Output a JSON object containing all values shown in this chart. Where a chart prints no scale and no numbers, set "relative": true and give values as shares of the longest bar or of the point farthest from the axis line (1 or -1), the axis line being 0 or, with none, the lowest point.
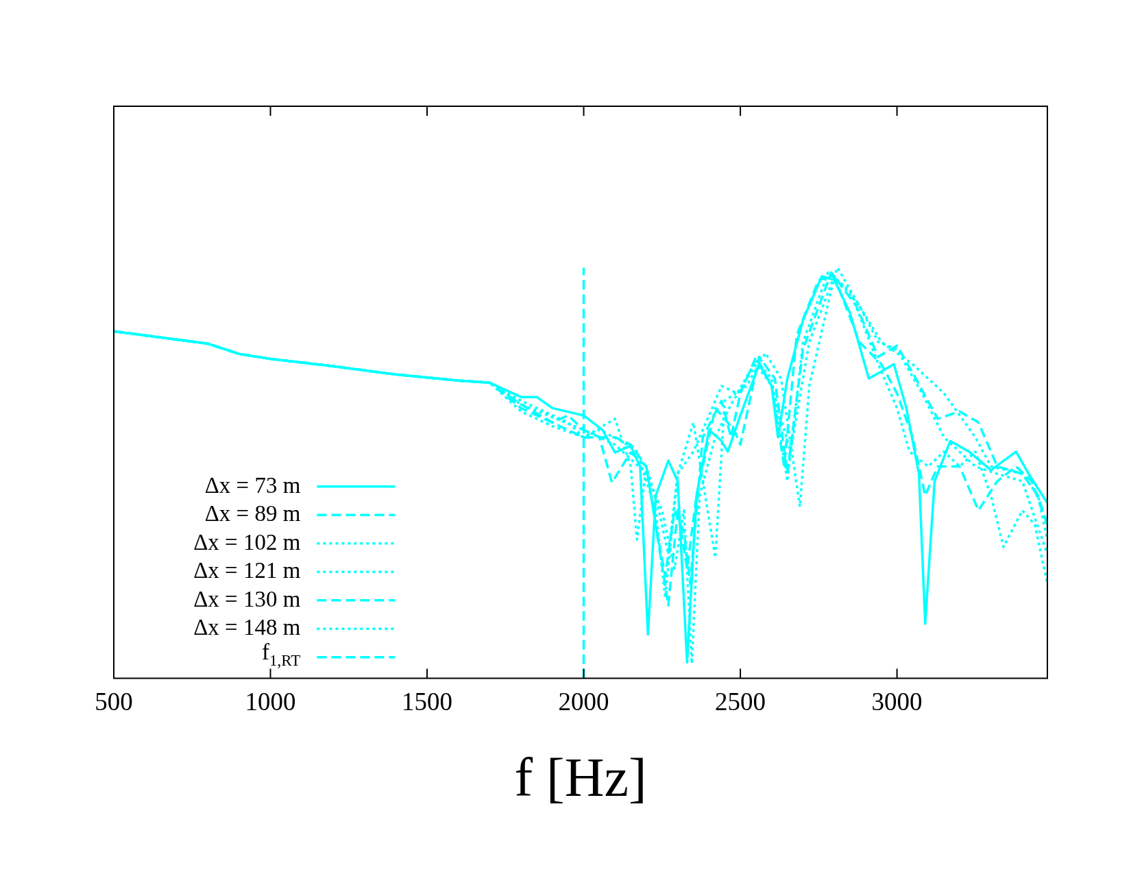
{
  "chart_data": {
    "type": "line",
    "xlabel": "f [Hz]",
    "relative": true,
    "xlim": [
      500,
      3480
    ],
    "xticks": [
      500,
      1000,
      1500,
      2000,
      2500,
      3000
    ],
    "grid": false,
    "legend": "bottom left",
    "marker": "none",
    "series": [
      {
        "name": "Δx = 73 m",
        "color": "#00ffff",
        "line_style": "solid",
        "x": [
          500,
          550,
          650,
          800,
          900,
          1000,
          1200,
          1400,
          1600,
          1700,
          1800,
          1850,
          1900,
          2000,
          2060,
          2100,
          2150,
          2180,
          2205,
          2230,
          2270,
          2300,
          2330,
          2360,
          2400,
          2440,
          2460,
          2500,
          2560,
          2600,
          2620,
          2650,
          2700,
          2760,
          2800,
          2850,
          2910,
          2950,
          2990,
          3030,
          3070,
          3090,
          3120,
          3170,
          3230,
          3300,
          3380,
          3420,
          3480
        ],
        "values": [
          0.845,
          0.84,
          0.83,
          0.815,
          0.79,
          0.778,
          0.76,
          0.74,
          0.725,
          0.72,
          0.685,
          0.685,
          0.658,
          0.64,
          0.605,
          0.55,
          0.566,
          0.516,
          0.107,
          0.445,
          0.53,
          0.48,
          0.039,
          0.445,
          0.605,
          0.578,
          0.552,
          0.64,
          0.765,
          0.712,
          0.587,
          0.73,
          0.872,
          0.979,
          0.97,
          0.89,
          0.73,
          0.747,
          0.765,
          0.658,
          0.498,
          0.133,
          0.48,
          0.578,
          0.552,
          0.507,
          0.552,
          0.498,
          0.427
        ]
      },
      {
        "name": "Δx = 89 m",
        "color": "#00ffff",
        "line_style": "dashed",
        "x": [
          500,
          550,
          650,
          800,
          900,
          1000,
          1200,
          1400,
          1600,
          1700,
          1800,
          1900,
          1950,
          2000,
          2050,
          2090,
          2150,
          2200,
          2230,
          2260,
          2290,
          2320,
          2340,
          2380,
          2440,
          2470,
          2500,
          2550,
          2600,
          2640,
          2680,
          2750,
          2800,
          2880,
          2950,
          3000,
          3050,
          3090,
          3130,
          3200,
          3260,
          3320,
          3380,
          3430,
          3480
        ],
        "values": [
          0.845,
          0.84,
          0.83,
          0.815,
          0.79,
          0.778,
          0.76,
          0.74,
          0.725,
          0.72,
          0.667,
          0.623,
          0.64,
          0.605,
          0.587,
          0.477,
          0.55,
          0.516,
          0.374,
          0.249,
          0.409,
          0.356,
          0.231,
          0.587,
          0.676,
          0.587,
          0.694,
          0.783,
          0.712,
          0.516,
          0.836,
          0.97,
          0.979,
          0.819,
          0.765,
          0.694,
          0.587,
          0.445,
          0.516,
          0.516,
          0.409,
          0.48,
          0.516,
          0.48,
          0.374
        ]
      },
      {
        "name": "Δx = 102 m",
        "color": "#00ffff",
        "line_style": "dotted",
        "x": [
          500,
          550,
          650,
          800,
          900,
          1000,
          1200,
          1400,
          1600,
          1700,
          1800,
          1950,
          2000,
          2100,
          2150,
          2170,
          2200,
          2240,
          2270,
          2300,
          2350,
          2400,
          2440,
          2490,
          2550,
          2600,
          2650,
          2700,
          2780,
          2850,
          2950,
          3000,
          3040,
          3100,
          3150,
          3200,
          3250,
          3300,
          3340,
          3400,
          3440,
          3480
        ],
        "values": [
          0.845,
          0.84,
          0.83,
          0.815,
          0.79,
          0.778,
          0.76,
          0.74,
          0.725,
          0.72,
          0.676,
          0.623,
          0.587,
          0.632,
          0.516,
          0.338,
          0.516,
          0.409,
          0.302,
          0.498,
          0.552,
          0.64,
          0.712,
          0.694,
          0.774,
          0.73,
          0.48,
          0.819,
          0.988,
          0.943,
          0.747,
          0.658,
          0.552,
          0.516,
          0.552,
          0.516,
          0.552,
          0.445,
          0.32,
          0.409,
          0.374,
          0.231
        ]
      },
      {
        "name": "Δx = 121 m",
        "color": "#00ffff",
        "line_style": "dotted",
        "x": [
          500,
          550,
          650,
          800,
          900,
          1000,
          1200,
          1400,
          1600,
          1700,
          1800,
          2000,
          2100,
          2150,
          2200,
          2250,
          2290,
          2320,
          2345,
          2370,
          2420,
          2470,
          2550,
          2600,
          2660,
          2720,
          2810,
          2880,
          2950,
          3050,
          3150,
          3250,
          3300,
          3400,
          3450,
          3480
        ],
        "values": [
          0.845,
          0.84,
          0.83,
          0.815,
          0.79,
          0.778,
          0.76,
          0.74,
          0.725,
          0.72,
          0.667,
          0.605,
          0.569,
          0.534,
          0.498,
          0.409,
          0.267,
          0.409,
          0.036,
          0.445,
          0.587,
          0.667,
          0.765,
          0.712,
          0.552,
          0.819,
          1,
          0.907,
          0.819,
          0.765,
          0.694,
          0.587,
          0.516,
          0.498,
          0.445,
          0.338
        ]
      },
      {
        "name": "Δx = 130 m",
        "color": "#00ffff",
        "line_style": "dashed",
        "x": [
          500,
          550,
          650,
          800,
          900,
          1000,
          1200,
          1400,
          1600,
          1700,
          1800,
          2000,
          2100,
          2150,
          2200,
          2270,
          2300,
          2330,
          2360,
          2420,
          2480,
          2500,
          2560,
          2610,
          2650,
          2700,
          2790,
          2870,
          2940,
          3000,
          3060,
          3130,
          3200,
          3260,
          3320,
          3400,
          3450,
          3480
        ],
        "values": [
          0.845,
          0.84,
          0.83,
          0.815,
          0.79,
          0.778,
          0.76,
          0.74,
          0.725,
          0.72,
          0.658,
          0.587,
          0.587,
          0.569,
          0.516,
          0.178,
          0.409,
          0.267,
          0.445,
          0.658,
          0.605,
          0.569,
          0.783,
          0.73,
          0.498,
          0.801,
          0.988,
          0.907,
          0.783,
          0.81,
          0.73,
          0.632,
          0.65,
          0.623,
          0.516,
          0.498,
          0.445,
          0.374
        ]
      },
      {
        "name": "Δx = 148 m",
        "color": "#00ffff",
        "line_style": "dotted",
        "x": [
          500,
          550,
          650,
          800,
          900,
          1000,
          1200,
          1400,
          1600,
          1700,
          1800,
          1900,
          2000,
          2050,
          2120,
          2170,
          2230,
          2260,
          2300,
          2350,
          2420,
          2450,
          2520,
          2580,
          2630,
          2690,
          2720,
          2800,
          2880,
          2940,
          3000,
          3080,
          3150,
          3250,
          3320,
          3400,
          3480
        ],
        "values": [
          0.845,
          0.84,
          0.83,
          0.815,
          0.79,
          0.778,
          0.76,
          0.74,
          0.725,
          0.72,
          0.65,
          0.614,
          0.587,
          0.605,
          0.578,
          0.552,
          0.409,
          0.196,
          0.498,
          0.623,
          0.294,
          0.676,
          0.712,
          0.792,
          0.73,
          0.418,
          0.712,
          0.979,
          0.907,
          0.819,
          0.801,
          0.694,
          0.587,
          0.516,
          0.498,
          0.48,
          0.302
        ]
      },
      {
        "name": "f$_{1,RT}$",
        "color": "#00ffff",
        "line_style": "dashed",
        "x": [
          2000,
          2000
        ],
        "values": [
          0,
          1
        ]
      }
    ]
  }
}
